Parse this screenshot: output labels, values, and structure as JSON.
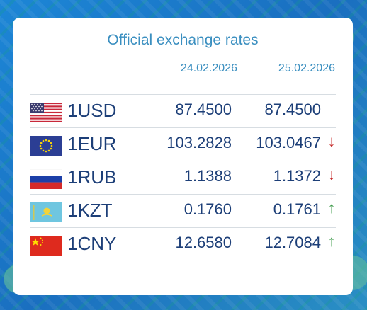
{
  "title": "Official exchange rates",
  "dates": [
    "24.02.2026",
    "25.02.2026"
  ],
  "rows": [
    {
      "code": "1USD",
      "flag": "usa-flag",
      "rate1": "87.4500",
      "rate2": "87.4500",
      "trend": "none",
      "arrow": ""
    },
    {
      "code": "1EUR",
      "flag": "eu-flag",
      "rate1": "103.2828",
      "rate2": "103.0467",
      "trend": "down",
      "arrow": "↓"
    },
    {
      "code": "1RUB",
      "flag": "russia-flag",
      "rate1": "1.1388",
      "rate2": "1.1372",
      "trend": "down",
      "arrow": "↓"
    },
    {
      "code": "1KZT",
      "flag": "kazakhstan-flag",
      "rate1": "0.1760",
      "rate2": "0.1761",
      "trend": "up",
      "arrow": "↑"
    },
    {
      "code": "1CNY",
      "flag": "china-flag",
      "rate1": "12.6580",
      "rate2": "12.7084",
      "trend": "up",
      "arrow": "↑"
    }
  ],
  "colors": {
    "accent": "#3b8fc0",
    "text": "#1d3f78",
    "down": "#c52a2a",
    "up": "#3d9a4a"
  }
}
